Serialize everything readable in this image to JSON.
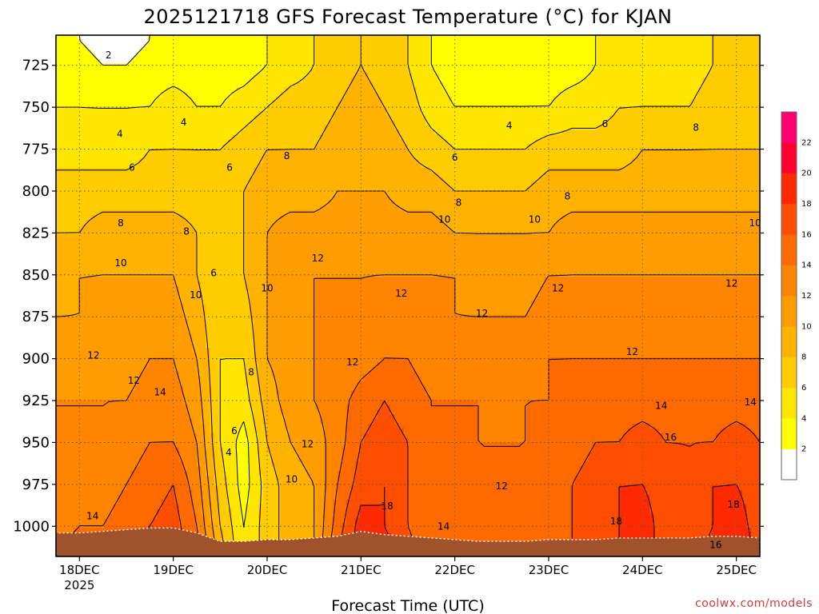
{
  "chart_data": {
    "type": "heatmap",
    "title": "2025121718 GFS Forecast Temperature (°C) for KJAN",
    "xlabel": "Forecast Time (UTC)",
    "ylabel": "",
    "y_reversed": true,
    "ylim": [
      1018,
      707
    ],
    "y_ticks": [
      725,
      750,
      775,
      800,
      825,
      850,
      875,
      900,
      925,
      950,
      975,
      1000
    ],
    "x_ticks": [
      "18DEC",
      "19DEC",
      "20DEC",
      "21DEC",
      "22DEC",
      "23DEC",
      "24DEC",
      "25DEC"
    ],
    "x_tick_sublabel": "2025",
    "xlim_days": [
      17.75,
      25.25
    ],
    "grid": true,
    "contour_interval": 2,
    "colorbar_levels": [
      2,
      4,
      6,
      8,
      10,
      12,
      14,
      16,
      18,
      20,
      22
    ],
    "colorbar_colors": [
      "#ffffff",
      "#ffff00",
      "#ffe600",
      "#ffcc00",
      "#ffb200",
      "#ff9c00",
      "#ff8400",
      "#ff6a00",
      "#ff4e00",
      "#ff2a00",
      "#ff0030",
      "#ff0070"
    ],
    "times_days": [
      17.75,
      18.0,
      18.25,
      18.5,
      18.75,
      19.0,
      19.25,
      19.5,
      19.75,
      20.0,
      20.25,
      20.5,
      20.75,
      21.0,
      21.25,
      21.5,
      21.75,
      22.0,
      22.25,
      22.5,
      22.75,
      23.0,
      23.25,
      23.5,
      23.75,
      24.0,
      24.25,
      24.5,
      24.75,
      25.0,
      25.25
    ],
    "levels_hpa": [
      1015,
      1000,
      975,
      950,
      925,
      900,
      875,
      850,
      825,
      800,
      775,
      750,
      725,
      710
    ],
    "temperature_c": [
      [
        14,
        15,
        15,
        16,
        17,
        17,
        15,
        9,
        4,
        7,
        9,
        10,
        16,
        19,
        19,
        17,
        14,
        14,
        14,
        14,
        14,
        15,
        16,
        17,
        18,
        19,
        17,
        16,
        19,
        20,
        17
      ],
      [
        13,
        14,
        14,
        15,
        16,
        17,
        14,
        8,
        4,
        7,
        9,
        10,
        15,
        19,
        18,
        16,
        14,
        14,
        14,
        14,
        14,
        15,
        16,
        17,
        18,
        19,
        17,
        16,
        18,
        19,
        17
      ],
      [
        12,
        13,
        13,
        14,
        15,
        16,
        13,
        7,
        3,
        7,
        9,
        10,
        14,
        17,
        18,
        16,
        14,
        14,
        14,
        14,
        14,
        15,
        16,
        17,
        18,
        18,
        17,
        16,
        18,
        18,
        17
      ],
      [
        12,
        12,
        12,
        13,
        14,
        14,
        12,
        6,
        3,
        8,
        10,
        11,
        13,
        16,
        17,
        16,
        14,
        14,
        14,
        14,
        14,
        15,
        15,
        16,
        16,
        17,
        16,
        16,
        16,
        17,
        16
      ],
      [
        12,
        12,
        12,
        12,
        13,
        13,
        11,
        6,
        5,
        9,
        11,
        12,
        13,
        15,
        16,
        15,
        14,
        14,
        14,
        13,
        14,
        14,
        15,
        15,
        15,
        15,
        15,
        15,
        15,
        15,
        15
      ],
      [
        11,
        11,
        11,
        11,
        12,
        12,
        10,
        6,
        6,
        10,
        11,
        12,
        12,
        13,
        14,
        14,
        13,
        13,
        13,
        13,
        13,
        14,
        14,
        14,
        14,
        14,
        14,
        14,
        14,
        14,
        14
      ],
      [
        10,
        10,
        11,
        11,
        11,
        11,
        9,
        6,
        7,
        10,
        11,
        12,
        12,
        12,
        13,
        13,
        13,
        12,
        12,
        12,
        12,
        13,
        13,
        13,
        13,
        13,
        13,
        13,
        13,
        13,
        13
      ],
      [
        9,
        10,
        10,
        10,
        10,
        10,
        8,
        6,
        8,
        10,
        11,
        12,
        12,
        12,
        12,
        12,
        12,
        12,
        11,
        11,
        11,
        12,
        12,
        12,
        12,
        12,
        12,
        12,
        12,
        12,
        12
      ],
      [
        8,
        8,
        9,
        9,
        9,
        9,
        8,
        7,
        8,
        10,
        11,
        11,
        11,
        11,
        11,
        11,
        11,
        10,
        10,
        10,
        10,
        10,
        11,
        11,
        11,
        11,
        11,
        11,
        11,
        11,
        11
      ],
      [
        7,
        7,
        7,
        7,
        7,
        7,
        7,
        7,
        8,
        9,
        9,
        9,
        10,
        10,
        10,
        9,
        9,
        8,
        8,
        8,
        8,
        9,
        9,
        9,
        9,
        9,
        9,
        9,
        9,
        9,
        9
      ],
      [
        5,
        5,
        5,
        5,
        6,
        6,
        6,
        6,
        7,
        8,
        8,
        8,
        9,
        9,
        9,
        8,
        7,
        6,
        6,
        6,
        6,
        7,
        7,
        7,
        7,
        8,
        8,
        8,
        8,
        8,
        8
      ],
      [
        4,
        4,
        4,
        4,
        4,
        5,
        4,
        4,
        5,
        6,
        7,
        7,
        8,
        9,
        8,
        7,
        5,
        4,
        4,
        4,
        4,
        4,
        5,
        5,
        6,
        6,
        6,
        6,
        7,
        7,
        7
      ],
      [
        3,
        3,
        2,
        2,
        3,
        3,
        3,
        3,
        3,
        4,
        5,
        6,
        7,
        8,
        7,
        6,
        4,
        3,
        3,
        3,
        3,
        3,
        3,
        4,
        4,
        5,
        5,
        5,
        6,
        6,
        6
      ],
      [
        2,
        2,
        1,
        1,
        2,
        3,
        2,
        2,
        3,
        4,
        5,
        6,
        7,
        8,
        7,
        6,
        4,
        3,
        3,
        3,
        3,
        3,
        3,
        4,
        4,
        5,
        5,
        5,
        6,
        6,
        6
      ]
    ],
    "surface_pressure_hpa": [
      1004,
      1004,
      1003,
      1002,
      1001,
      1001,
      1004,
      1009,
      1009,
      1008,
      1008,
      1007,
      1006,
      1003,
      1005,
      1006,
      1007,
      1008,
      1009,
      1009,
      1009,
      1008,
      1008,
      1008,
      1007,
      1007,
      1007,
      1007,
      1006,
      1006,
      1007
    ],
    "contour_labels": [
      {
        "t": 18.31,
        "p": 719,
        "v": "2"
      },
      {
        "t": 18.43,
        "p": 766,
        "v": "4"
      },
      {
        "t": 19.11,
        "p": 759,
        "v": "4"
      },
      {
        "t": 22.58,
        "p": 761,
        "v": "4"
      },
      {
        "t": 18.56,
        "p": 786,
        "v": "6"
      },
      {
        "t": 19.6,
        "p": 786,
        "v": "6"
      },
      {
        "t": 22.0,
        "p": 780,
        "v": "6"
      },
      {
        "t": 23.6,
        "p": 760,
        "v": "6"
      },
      {
        "t": 20.21,
        "p": 779,
        "v": "8"
      },
      {
        "t": 22.04,
        "p": 807,
        "v": "8"
      },
      {
        "t": 23.2,
        "p": 803,
        "v": "8"
      },
      {
        "t": 24.57,
        "p": 762,
        "v": "8"
      },
      {
        "t": 18.44,
        "p": 819,
        "v": "8"
      },
      {
        "t": 19.14,
        "p": 824,
        "v": "8"
      },
      {
        "t": 19.43,
        "p": 849,
        "v": "6"
      },
      {
        "t": 18.44,
        "p": 843,
        "v": "10"
      },
      {
        "t": 19.24,
        "p": 862,
        "v": "10"
      },
      {
        "t": 20.0,
        "p": 858,
        "v": "10"
      },
      {
        "t": 21.89,
        "p": 817,
        "v": "10"
      },
      {
        "t": 22.85,
        "p": 817,
        "v": "10"
      },
      {
        "t": 25.2,
        "p": 819,
        "v": "10"
      },
      {
        "t": 20.54,
        "p": 840,
        "v": "12"
      },
      {
        "t": 21.43,
        "p": 861,
        "v": "12"
      },
      {
        "t": 22.29,
        "p": 873,
        "v": "12"
      },
      {
        "t": 23.1,
        "p": 858,
        "v": "12"
      },
      {
        "t": 23.89,
        "p": 896,
        "v": "12"
      },
      {
        "t": 24.95,
        "p": 855,
        "v": "12"
      },
      {
        "t": 18.15,
        "p": 898,
        "v": "12"
      },
      {
        "t": 18.58,
        "p": 913,
        "v": "12"
      },
      {
        "t": 20.91,
        "p": 902,
        "v": "12"
      },
      {
        "t": 20.43,
        "p": 951,
        "v": "12"
      },
      {
        "t": 22.5,
        "p": 976,
        "v": "12"
      },
      {
        "t": 18.86,
        "p": 920,
        "v": "14"
      },
      {
        "t": 24.2,
        "p": 928,
        "v": "14"
      },
      {
        "t": 25.15,
        "p": 926,
        "v": "14"
      },
      {
        "t": 18.14,
        "p": 994,
        "v": "14"
      },
      {
        "t": 21.88,
        "p": 1000,
        "v": "14"
      },
      {
        "t": 19.59,
        "p": 956,
        "v": "4"
      },
      {
        "t": 19.65,
        "p": 943,
        "v": "6"
      },
      {
        "t": 19.83,
        "p": 908,
        "v": "8"
      },
      {
        "t": 20.26,
        "p": 972,
        "v": "10"
      },
      {
        "t": 24.3,
        "p": 947,
        "v": "16"
      },
      {
        "t": 21.28,
        "p": 988,
        "v": "18"
      },
      {
        "t": 23.72,
        "p": 997,
        "v": "18"
      },
      {
        "t": 24.97,
        "p": 987,
        "v": "18"
      },
      {
        "t": 24.78,
        "p": 1011,
        "v": "16"
      }
    ]
  },
  "credit": "coolwx.com/models"
}
